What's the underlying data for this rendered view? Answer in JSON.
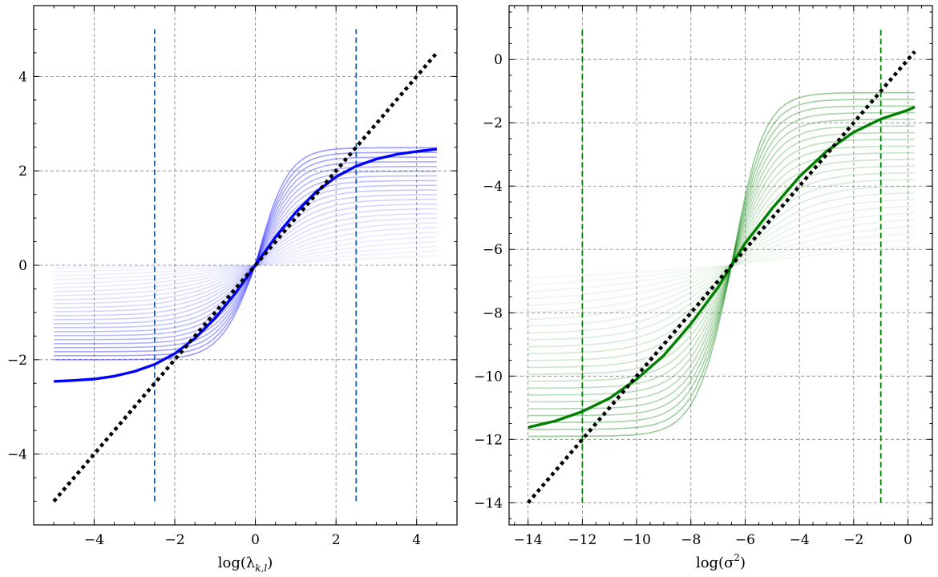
{
  "chart_data": [
    {
      "type": "line",
      "xlabel": "log(λ_{k,l})",
      "xlabel_main": "log(λ",
      "xlabel_sub": "k,l",
      "xlabel_end": ")",
      "xlim": [
        -5.5,
        5.0
      ],
      "ylim": [
        -5.5,
        5.5
      ],
      "xticks": [
        -4,
        -2,
        0,
        2,
        4
      ],
      "yticks": [
        -4,
        -2,
        0,
        2,
        4
      ],
      "xtick_labels": [
        "−4",
        "−2",
        "0",
        "2",
        "4"
      ],
      "ytick_labels": [
        "−4",
        "−2",
        "0",
        "2",
        "4"
      ],
      "grid": true,
      "color": "#0000ff",
      "vline_color": "#1f5fa8",
      "identity": {
        "x": [
          -5,
          4.5
        ],
        "y": [
          -5,
          4.5
        ]
      },
      "vlines": [
        {
          "x": -2.5,
          "y": [
            -5,
            5
          ]
        },
        {
          "x": 2.5,
          "y": [
            -5,
            5
          ]
        }
      ],
      "mean_curve": {
        "x": [
          -5,
          -4.5,
          -4,
          -3.5,
          -3,
          -2.5,
          -2,
          -1.5,
          -1,
          -0.5,
          0,
          0.5,
          1,
          1.5,
          2,
          2.5,
          3,
          3.5,
          4,
          4.5
        ],
        "y": [
          -2.46,
          -2.44,
          -2.41,
          -2.35,
          -2.25,
          -2.1,
          -1.87,
          -1.55,
          -1.12,
          -0.6,
          0,
          0.6,
          1.12,
          1.55,
          1.87,
          2.1,
          2.25,
          2.35,
          2.41,
          2.46
        ]
      },
      "band": {
        "x_start": -5,
        "x_end": 4.5,
        "center": 0,
        "lines": 24,
        "lower_start_y": [
          -0.05,
          -2.0
        ],
        "upper_end_y": [
          0.2,
          2.49
        ],
        "saturation": 2.48
      }
    },
    {
      "type": "line",
      "xlabel": "log(σ²)",
      "xlabel_main": "log(σ",
      "xlabel_sup": "2",
      "xlabel_end": ")",
      "xlim": [
        -14.7,
        0.9
      ],
      "ylim": [
        -14.7,
        1.7
      ],
      "xticks": [
        -14,
        -12,
        -10,
        -8,
        -6,
        -4,
        -2,
        0
      ],
      "yticks": [
        -14,
        -12,
        -10,
        -8,
        -6,
        -4,
        -2,
        0
      ],
      "xtick_labels": [
        "−14",
        "−12",
        "−10",
        "−8",
        "−6",
        "−4",
        "−2",
        "0"
      ],
      "ytick_labels": [
        "−14",
        "−12",
        "−10",
        "−8",
        "−6",
        "−4",
        "−2",
        "0"
      ],
      "grid": true,
      "color": "#008000",
      "vline_color": "#008000",
      "identity": {
        "x": [
          -14,
          0.25
        ],
        "y": [
          -14,
          0.25
        ]
      },
      "vlines": [
        {
          "x": -12,
          "y": [
            -14,
            1
          ]
        },
        {
          "x": -1,
          "y": [
            -14,
            1
          ]
        }
      ],
      "mean_curve": {
        "x": [
          -14,
          -13,
          -12,
          -11,
          -10,
          -9,
          -8,
          -7,
          -6.5,
          -6,
          -5,
          -4,
          -3,
          -2,
          -1,
          0,
          0.25
        ],
        "y": [
          -11.62,
          -11.42,
          -11.12,
          -10.7,
          -10.1,
          -9.35,
          -8.35,
          -7.2,
          -6.5,
          -5.8,
          -4.7,
          -3.7,
          -2.9,
          -2.3,
          -1.88,
          -1.6,
          -1.5
        ]
      },
      "band": {
        "x_start": -14,
        "x_end": 0.25,
        "center": -6.5,
        "lines": 24,
        "lower_start_y": [
          -6.9,
          -11.9
        ],
        "upper_end_y": [
          -5.9,
          -1.05
        ],
        "saturation": 5.5
      }
    }
  ]
}
